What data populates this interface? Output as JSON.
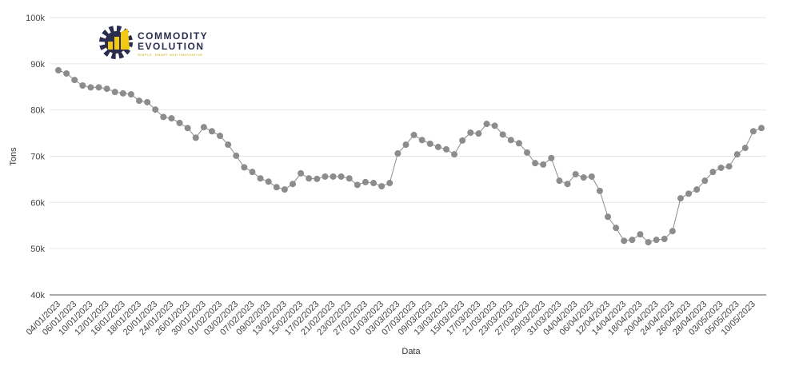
{
  "chart_data": {
    "type": "line",
    "logo": {
      "name_line1": "COMMODITY",
      "name_line2": "EVOLUTION",
      "tagline": "SIMPLE, SMART AND INNOVATIVE"
    },
    "y_label": "Tons",
    "x_label": "Data",
    "ylim": [
      40000,
      100000
    ],
    "yticks": [
      {
        "value": 40000,
        "label": "40k"
      },
      {
        "value": 50000,
        "label": "50k"
      },
      {
        "value": 60000,
        "label": "60k"
      },
      {
        "value": 70000,
        "label": "70k"
      },
      {
        "value": 80000,
        "label": "80k"
      },
      {
        "value": 90000,
        "label": "90k"
      },
      {
        "value": 100000,
        "label": "100k"
      }
    ],
    "grid": true,
    "color": "#8c8c8c",
    "categories": [
      "04/01/2023",
      null,
      "06/01/2023",
      null,
      "10/01/2023",
      null,
      "12/01/2023",
      null,
      "16/01/2023",
      null,
      "18/01/2023",
      null,
      "20/01/2023",
      null,
      "24/01/2023",
      null,
      "26/01/2023",
      null,
      "30/01/2023",
      null,
      "01/02/2023",
      null,
      "03/02/2023",
      null,
      "07/02/2023",
      null,
      "09/02/2023",
      null,
      "13/02/2023",
      null,
      "15/02/2023",
      null,
      "17/02/2023",
      null,
      "21/02/2023",
      null,
      "23/02/2023",
      null,
      "27/02/2023",
      null,
      "01/03/2023",
      null,
      "03/03/2023",
      null,
      "07/03/2023",
      null,
      "09/03/2023",
      null,
      "13/03/2023",
      null,
      "15/03/2023",
      null,
      "17/03/2023",
      null,
      "21/03/2023",
      null,
      "23/03/2023",
      null,
      "27/03/2023",
      null,
      "29/03/2023",
      null,
      "31/03/2023",
      null,
      "04/04/2023",
      null,
      "06/04/2023",
      null,
      "12/04/2023",
      null,
      "14/04/2023",
      null,
      "18/04/2023",
      null,
      "20/04/2023",
      null,
      "24/04/2023",
      null,
      "26/04/2023",
      null,
      "28/04/2023",
      null,
      "03/05/2023",
      null,
      "05/05/2023",
      null,
      "10/05/2023",
      null
    ],
    "values": [
      88600,
      87900,
      86500,
      85300,
      84900,
      84900,
      84600,
      83900,
      83600,
      83400,
      82000,
      81700,
      80100,
      78500,
      78200,
      77200,
      76100,
      74000,
      76300,
      75400,
      74400,
      72500,
      70100,
      67600,
      66600,
      65200,
      64500,
      63300,
      62800,
      64000,
      66300,
      65200,
      65100,
      65600,
      65600,
      65600,
      65200,
      63800,
      64400,
      64200,
      63500,
      64200,
      70600,
      72500,
      74600,
      73500,
      72700,
      72000,
      71500,
      70400,
      73400,
      75100,
      74900,
      77000,
      76600,
      74700,
      73500,
      72800,
      70800,
      68500,
      68200,
      69600,
      64700,
      64000,
      66100,
      65400,
      65600,
      62500,
      56900,
      54500,
      51700,
      51900,
      53100,
      51400,
      51900,
      52100,
      53800,
      60900,
      61900,
      62800,
      64700,
      66600,
      67500,
      67800,
      70400,
      71800,
      75400,
      76100
    ]
  }
}
